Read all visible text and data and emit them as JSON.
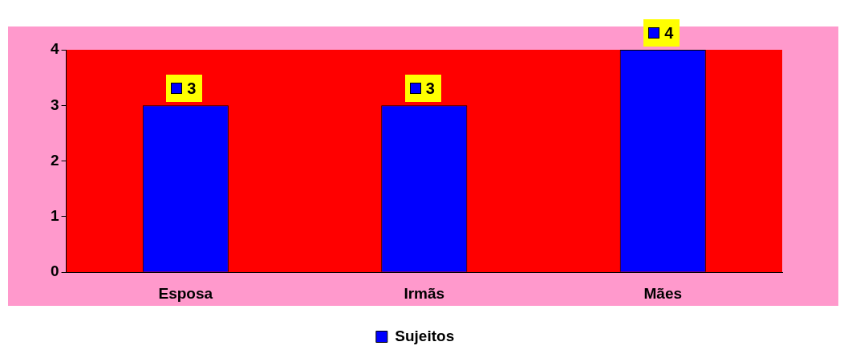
{
  "chart_data": {
    "type": "bar",
    "categories": [
      "Esposa",
      "Irmãs",
      "Mães"
    ],
    "series": [
      {
        "name": "Sujeitos",
        "color": "#0000ff",
        "values": [
          3,
          3,
          4
        ]
      }
    ],
    "ylim": [
      0,
      4
    ],
    "yticks": [
      0,
      1,
      2,
      3,
      4
    ],
    "grid": false,
    "data_labels": true,
    "legend": "bottom"
  }
}
